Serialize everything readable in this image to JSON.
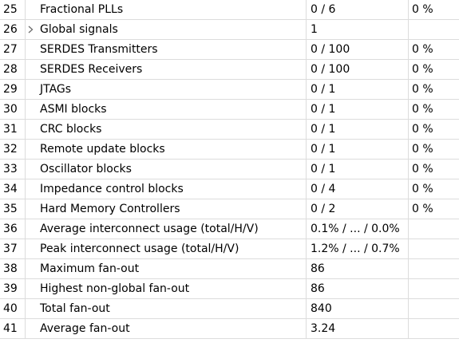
{
  "rows": [
    {
      "num": "25",
      "name": "Fractional PLLs",
      "usage": "0 / 6",
      "pct": "0 %",
      "expandable": false
    },
    {
      "num": "26",
      "name": "Global signals",
      "usage": "1",
      "pct": "",
      "expandable": true
    },
    {
      "num": "27",
      "name": "SERDES Transmitters",
      "usage": "0 / 100",
      "pct": "0 %",
      "expandable": false
    },
    {
      "num": "28",
      "name": "SERDES Receivers",
      "usage": "0 / 100",
      "pct": "0 %",
      "expandable": false
    },
    {
      "num": "29",
      "name": "JTAGs",
      "usage": "0 / 1",
      "pct": "0 %",
      "expandable": false
    },
    {
      "num": "30",
      "name": "ASMI blocks",
      "usage": "0 / 1",
      "pct": "0 %",
      "expandable": false
    },
    {
      "num": "31",
      "name": "CRC blocks",
      "usage": "0 / 1",
      "pct": "0 %",
      "expandable": false
    },
    {
      "num": "32",
      "name": "Remote update blocks",
      "usage": "0 / 1",
      "pct": "0 %",
      "expandable": false
    },
    {
      "num": "33",
      "name": "Oscillator blocks",
      "usage": "0 / 1",
      "pct": "0 %",
      "expandable": false
    },
    {
      "num": "34",
      "name": "Impedance control blocks",
      "usage": "0 / 4",
      "pct": "0 %",
      "expandable": false
    },
    {
      "num": "35",
      "name": "Hard Memory Controllers",
      "usage": "0 / 2",
      "pct": "0 %",
      "expandable": false
    },
    {
      "num": "36",
      "name": "Average interconnect usage (total/H/V)",
      "usage": "0.1% / ... / 0.0%",
      "pct": "",
      "expandable": false
    },
    {
      "num": "37",
      "name": "Peak interconnect usage (total/H/V)",
      "usage": "1.2% / ... / 0.7%",
      "pct": "",
      "expandable": false
    },
    {
      "num": "38",
      "name": "Maximum fan-out",
      "usage": "86",
      "pct": "",
      "expandable": false
    },
    {
      "num": "39",
      "name": "Highest non-global fan-out",
      "usage": "86",
      "pct": "",
      "expandable": false
    },
    {
      "num": "40",
      "name": "Total fan-out",
      "usage": "840",
      "pct": "",
      "expandable": false
    },
    {
      "num": "41",
      "name": "Average fan-out",
      "usage": "3.24",
      "pct": "",
      "expandable": false
    }
  ],
  "icons": {
    "expand": "chevron-right-icon"
  },
  "colors": {
    "gridline": "#dcdcdc",
    "text": "#000000",
    "expand_icon": "#6b6b6b"
  }
}
